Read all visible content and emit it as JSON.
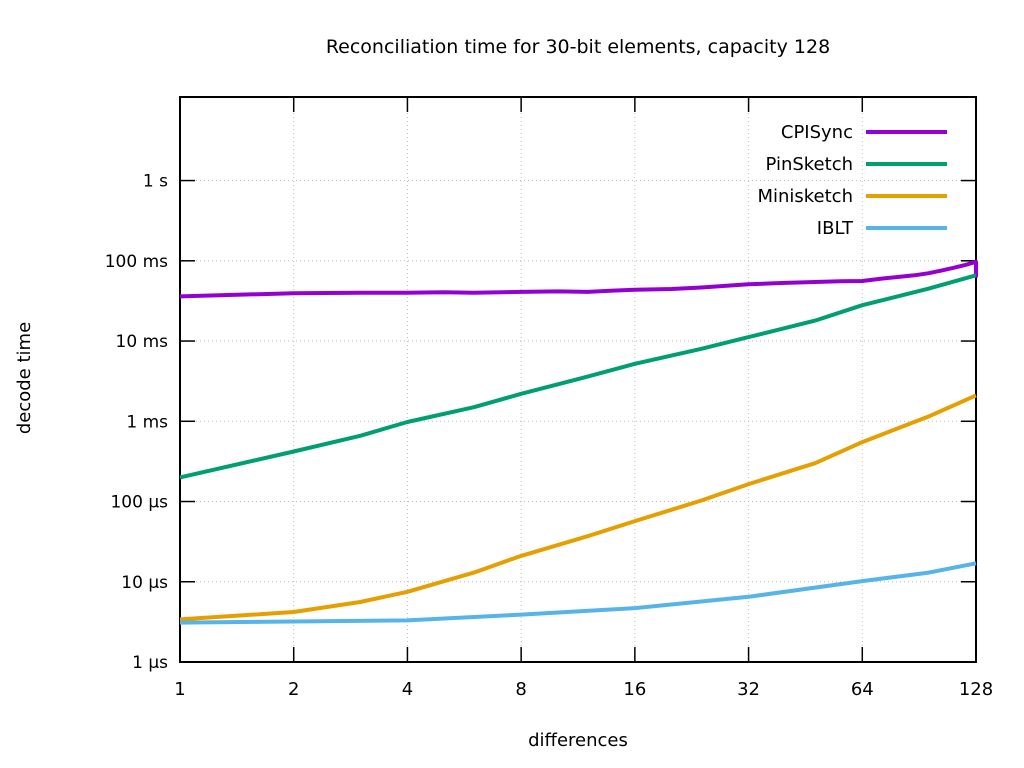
{
  "page": {
    "background": "#ffffff"
  },
  "chart_data": {
    "type": "line",
    "title": "Reconciliation time for 30-bit elements, capacity 128",
    "xlabel": "differences",
    "ylabel": "decode time",
    "x_scale": "log2",
    "y_scale": "log10",
    "xlim": [
      1,
      128
    ],
    "ylim_us": [
      1,
      11000000
    ],
    "grid": true,
    "legend_position": "top-right-inset",
    "x_ticks": [
      {
        "value": 1,
        "label": "1"
      },
      {
        "value": 2,
        "label": "2"
      },
      {
        "value": 4,
        "label": "4"
      },
      {
        "value": 8,
        "label": "8"
      },
      {
        "value": 16,
        "label": "16"
      },
      {
        "value": 32,
        "label": "32"
      },
      {
        "value": 64,
        "label": "64"
      },
      {
        "value": 128,
        "label": "128"
      }
    ],
    "y_ticks": [
      {
        "value_us": 1,
        "label": "1 µs"
      },
      {
        "value_us": 10,
        "label": "10 µs"
      },
      {
        "value_us": 100,
        "label": "100 µs"
      },
      {
        "value_us": 1000,
        "label": "1 ms"
      },
      {
        "value_us": 10000,
        "label": "10 ms"
      },
      {
        "value_us": 100000,
        "label": "100 ms"
      },
      {
        "value_us": 1000000,
        "label": "1 s"
      }
    ],
    "series": [
      {
        "name": "CPISync",
        "color": "#9400d3",
        "points_us": [
          [
            1,
            36000
          ],
          [
            2,
            39500
          ],
          [
            3,
            40000
          ],
          [
            4,
            40000
          ],
          [
            5,
            40500
          ],
          [
            6,
            40000
          ],
          [
            8,
            41000
          ],
          [
            10,
            41500
          ],
          [
            12,
            41000
          ],
          [
            14,
            42500
          ],
          [
            16,
            43500
          ],
          [
            20,
            44500
          ],
          [
            24,
            46500
          ],
          [
            28,
            49000
          ],
          [
            32,
            51000
          ],
          [
            40,
            53000
          ],
          [
            48,
            54500
          ],
          [
            56,
            55500
          ],
          [
            64,
            56000
          ],
          [
            72,
            60000
          ],
          [
            80,
            63000
          ],
          [
            88,
            66000
          ],
          [
            96,
            70000
          ],
          [
            104,
            76000
          ],
          [
            112,
            82000
          ],
          [
            120,
            89000
          ],
          [
            127,
            96000
          ],
          [
            128,
            97000
          ],
          [
            128,
            62000
          ]
        ]
      },
      {
        "name": "PinSketch",
        "color": "#009e73",
        "points_us": [
          [
            1,
            200
          ],
          [
            2,
            420
          ],
          [
            3,
            660
          ],
          [
            4,
            980
          ],
          [
            6,
            1500
          ],
          [
            8,
            2200
          ],
          [
            12,
            3600
          ],
          [
            16,
            5200
          ],
          [
            24,
            8000
          ],
          [
            32,
            11200
          ],
          [
            48,
            18000
          ],
          [
            64,
            28000
          ],
          [
            96,
            45000
          ],
          [
            128,
            66000
          ]
        ]
      },
      {
        "name": "Minisketch",
        "color": "#e69f00",
        "points_us": [
          [
            1,
            3.4
          ],
          [
            2,
            4.2
          ],
          [
            3,
            5.6
          ],
          [
            4,
            7.5
          ],
          [
            6,
            13
          ],
          [
            8,
            21
          ],
          [
            12,
            37
          ],
          [
            16,
            57
          ],
          [
            24,
            103
          ],
          [
            32,
            165
          ],
          [
            48,
            300
          ],
          [
            64,
            550
          ],
          [
            96,
            1150
          ],
          [
            128,
            2100
          ]
        ]
      },
      {
        "name": "IBLT",
        "color": "#56b4e9",
        "points_us": [
          [
            1,
            3.1
          ],
          [
            2,
            3.2
          ],
          [
            4,
            3.3
          ],
          [
            8,
            3.9
          ],
          [
            16,
            4.7
          ],
          [
            32,
            6.5
          ],
          [
            64,
            10.2
          ],
          [
            96,
            13
          ],
          [
            128,
            17
          ]
        ]
      }
    ],
    "style": {
      "border_color": "#000000",
      "grid_color": "#bdbdbd",
      "text_color": "#000000"
    }
  }
}
